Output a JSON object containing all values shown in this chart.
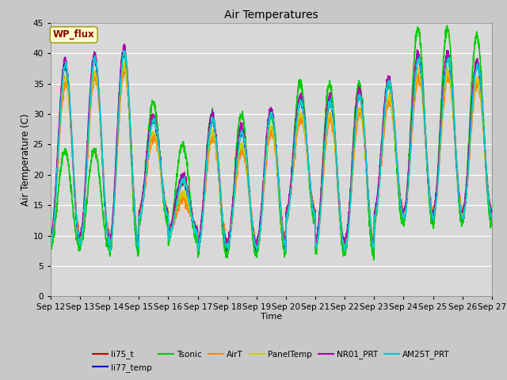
{
  "title": "Air Temperatures",
  "xlabel": "Time",
  "ylabel": "Air Temperature (C)",
  "ylim": [
    0,
    45
  ],
  "yticks": [
    0,
    5,
    10,
    15,
    20,
    25,
    30,
    35,
    40,
    45
  ],
  "x_tick_labels": [
    "Sep 12",
    "Sep 13",
    "Sep 14",
    "Sep 15",
    "Sep 16",
    "Sep 17",
    "Sep 18",
    "Sep 19",
    "Sep 20",
    "Sep 21",
    "Sep 22",
    "Sep 23",
    "Sep 24",
    "Sep 25",
    "Sep 26",
    "Sep 27"
  ],
  "fig_bg_color": "#c8c8c8",
  "plot_bg_color": "#d8d8d8",
  "series": [
    {
      "label": "li75_t",
      "color": "#cc0000",
      "lw": 1.0
    },
    {
      "label": "li77_temp",
      "color": "#0000cc",
      "lw": 1.0
    },
    {
      "label": "Tsonic",
      "color": "#00cc00",
      "lw": 1.2
    },
    {
      "label": "AirT",
      "color": "#ff8800",
      "lw": 1.0
    },
    {
      "label": "PanelTemp",
      "color": "#cccc00",
      "lw": 1.0
    },
    {
      "label": "NR01_PRT",
      "color": "#aa00aa",
      "lw": 1.0
    },
    {
      "label": "AM25T_PRT",
      "color": "#00cccc",
      "lw": 1.2
    }
  ],
  "annotation_text": "WP_flux",
  "day_mins_base": [
    9,
    9,
    8,
    13,
    10,
    8,
    8,
    8,
    13,
    8,
    8,
    13,
    13,
    13,
    13
  ],
  "day_maxs_base": [
    38,
    39,
    40,
    29,
    19,
    29,
    27,
    30,
    32,
    32,
    33,
    35,
    39,
    39,
    38
  ],
  "tsonic_day_maxs": [
    24,
    24,
    40,
    32,
    25,
    30,
    30,
    30,
    35,
    35,
    35,
    35,
    44,
    44,
    43
  ]
}
